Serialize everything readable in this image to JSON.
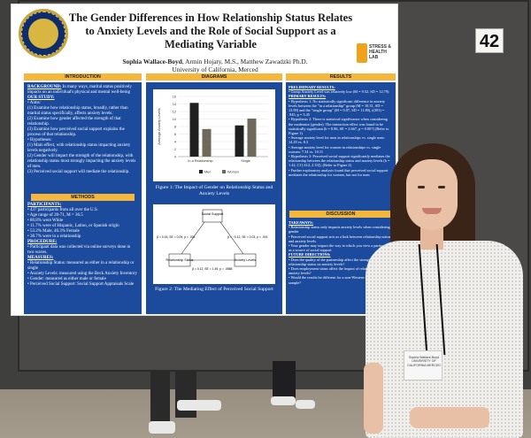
{
  "poster": {
    "title": "The Gender Differences in How Relationship Status Relates to Anxiety Levels and the Role of Social Support as a Mediating Variable",
    "authors_main": "Sophia Wallace-Boyd",
    "authors_rest": ", Armin Hojaty, M.S., Matthew Zawadzki Ph.D.",
    "affiliation": "University of California, Merced",
    "seal_text": "UNIVERSITY OF CALIFORNIA MERCED 2005",
    "lab_logo": "STRESS & HEALTH LAB",
    "sections": {
      "introduction": "INTRODUCTION",
      "diagrams": "DIAGRAMS",
      "results": "RESULTS",
      "methods": "METHODS",
      "discussion": "DISCUSSION"
    },
    "intro_text": {
      "background_label": "BACKGROUND:",
      "background": " In many ways, marital status positively impacts on an individual's physical and mental well-being",
      "our_study_label": "OUR STUDY:",
      "aims": "• Aims:",
      "aim1": "(1) Examine how relationship status, broadly, rather than marital status specifically, affects anxiety levels.",
      "aim2": "(2) Examine how gender affected the strength of that relationship.",
      "aim3": "(3) Examine how perceived social support explains the process of that relationship.",
      "hypotheses": "• Hypotheses:",
      "hyp1": "(1) Main effect, with relationship status impacting anxiety levels negatively.",
      "hyp2": "(2) Gender will impact the strength of the relationship, with relationship status most strongly impacting the anxiety levels of men.",
      "hyp3": "(3) Perceived social support will mediate the relationship."
    },
    "methods_text": {
      "participants_label": "PARTICIPANTS:",
      "p1": "• 437 participants from all over the U.S.",
      "p2": "• Age range of 20-71, M = 36.5",
      "p3": "• 80.8% were White",
      "p4": "• 11.7% were of Hispanic, Latino, or Spanish origin",
      "p5": "• 53.2% Male, 46.3% Female",
      "p6": "• 38.7% were in a relationship",
      "procedure_label": "PROCEDURE:",
      "proc": "• Participant data was collected via online surveys done in two waves.",
      "measures_label": "MEASURES:",
      "m1": "• Relationship Status: measured as either in a relationship or single",
      "m2": "• Anxiety Levels: measured using the Beck Anxiety Inventory",
      "m3": "• Gender: measured as either male or female",
      "m4": "• Perceived Social Support: Social Support Appraisals Scale"
    },
    "fig1_caption": "Figure 1: The Impact of Gender on Relationship Status and Anxiety Levels",
    "fig2_caption": "Figure 2: The Mediating Effect of Perceived Social Support",
    "fig2": {
      "mediator": "Social Support",
      "predictor": "Relationship Status",
      "outcome": "Anxiety Levels",
      "path_a": "β = 0.18, SE = 0.09, p < .001",
      "path_b": "β = −0.12, SE = 0.03, p < .001",
      "path_c": "β = 0.12, SE = 1.49, p = .0588"
    },
    "results_text": {
      "prelim_label": "PRELIMINARY RESULTS:",
      "prelim": "• Group Anxiety Level was relatively low (M = 9.52, SD = 12.79)",
      "primary_label": "PRIMARY RESULTS:",
      "r1": "• Hypothesis 1: No statistically significant difference in anxiety levels between the \"in a relationship\" group (M = 10.31, SD = 13.99) and the \"single group\" (M = 9.07, SD = 11.80), t(391) = .945, p = 3.45",
      "r2": "• Hypothesis 2: There is statistical significance when considering the moderator (gender). The interaction effect was found to be statistically significant (b = 8.86, SE = 2.667, p = 0.007) (Refer to Figure 1)",
      "r3": "• Average anxiety level for men in relationships vs. single men: 14.29 vs. 8.3",
      "r4": "• Average anxiety level for women in relationships vs. single women: 7.34 vs. 10.11",
      "r5": "• Hypothesis 3: Perceived social support significantly mediates the relationship between the relationship status and anxiety levels (b = 1.42, CI [.612, 2.33]). (Refer to Figure 2)",
      "r6": "• Further exploratory analysis found that perceived social support mediates the relationship for women, but not for men",
      "takeaways_label": "TAKEAWAYS:",
      "t1": "• Relationship status only impacts anxiety levels when considering gender",
      "t2": "• Perceived social support acts as a link between relationship status and anxiety levels",
      "t3": "• Your gender may impact the way in which you view a partnership as a source of social support",
      "future_label": "FUTURE DIRECTIONS:",
      "f1": "• Does the quality of the partnership affect the strength of the relationship status on anxiety levels?",
      "f2": "• Does employment status affect the impact of relationship status on anxiety levels?",
      "f3": "• Would the results be different for a non-Western individualistic sample?"
    },
    "board_number": "42",
    "badge": "Sophia Wallace-Boyd UNIVERSITY OF CALIFORNIA MERCED"
  },
  "chart_data": {
    "type": "bar",
    "categories": [
      "In a Relationship",
      "Single"
    ],
    "series": [
      {
        "name": "Men",
        "values": [
          14.29,
          8.3
        ],
        "color": "#1f1f1f"
      },
      {
        "name": "Women",
        "values": [
          7.34,
          10.11
        ],
        "color": "#6d6a5c"
      }
    ],
    "ylabel": "Average Anxiety Levels",
    "ylim": [
      0,
      16
    ],
    "yticks": [
      0,
      2,
      4,
      6,
      8,
      10,
      12,
      14,
      16
    ],
    "legend": "bottom",
    "grid": true
  }
}
